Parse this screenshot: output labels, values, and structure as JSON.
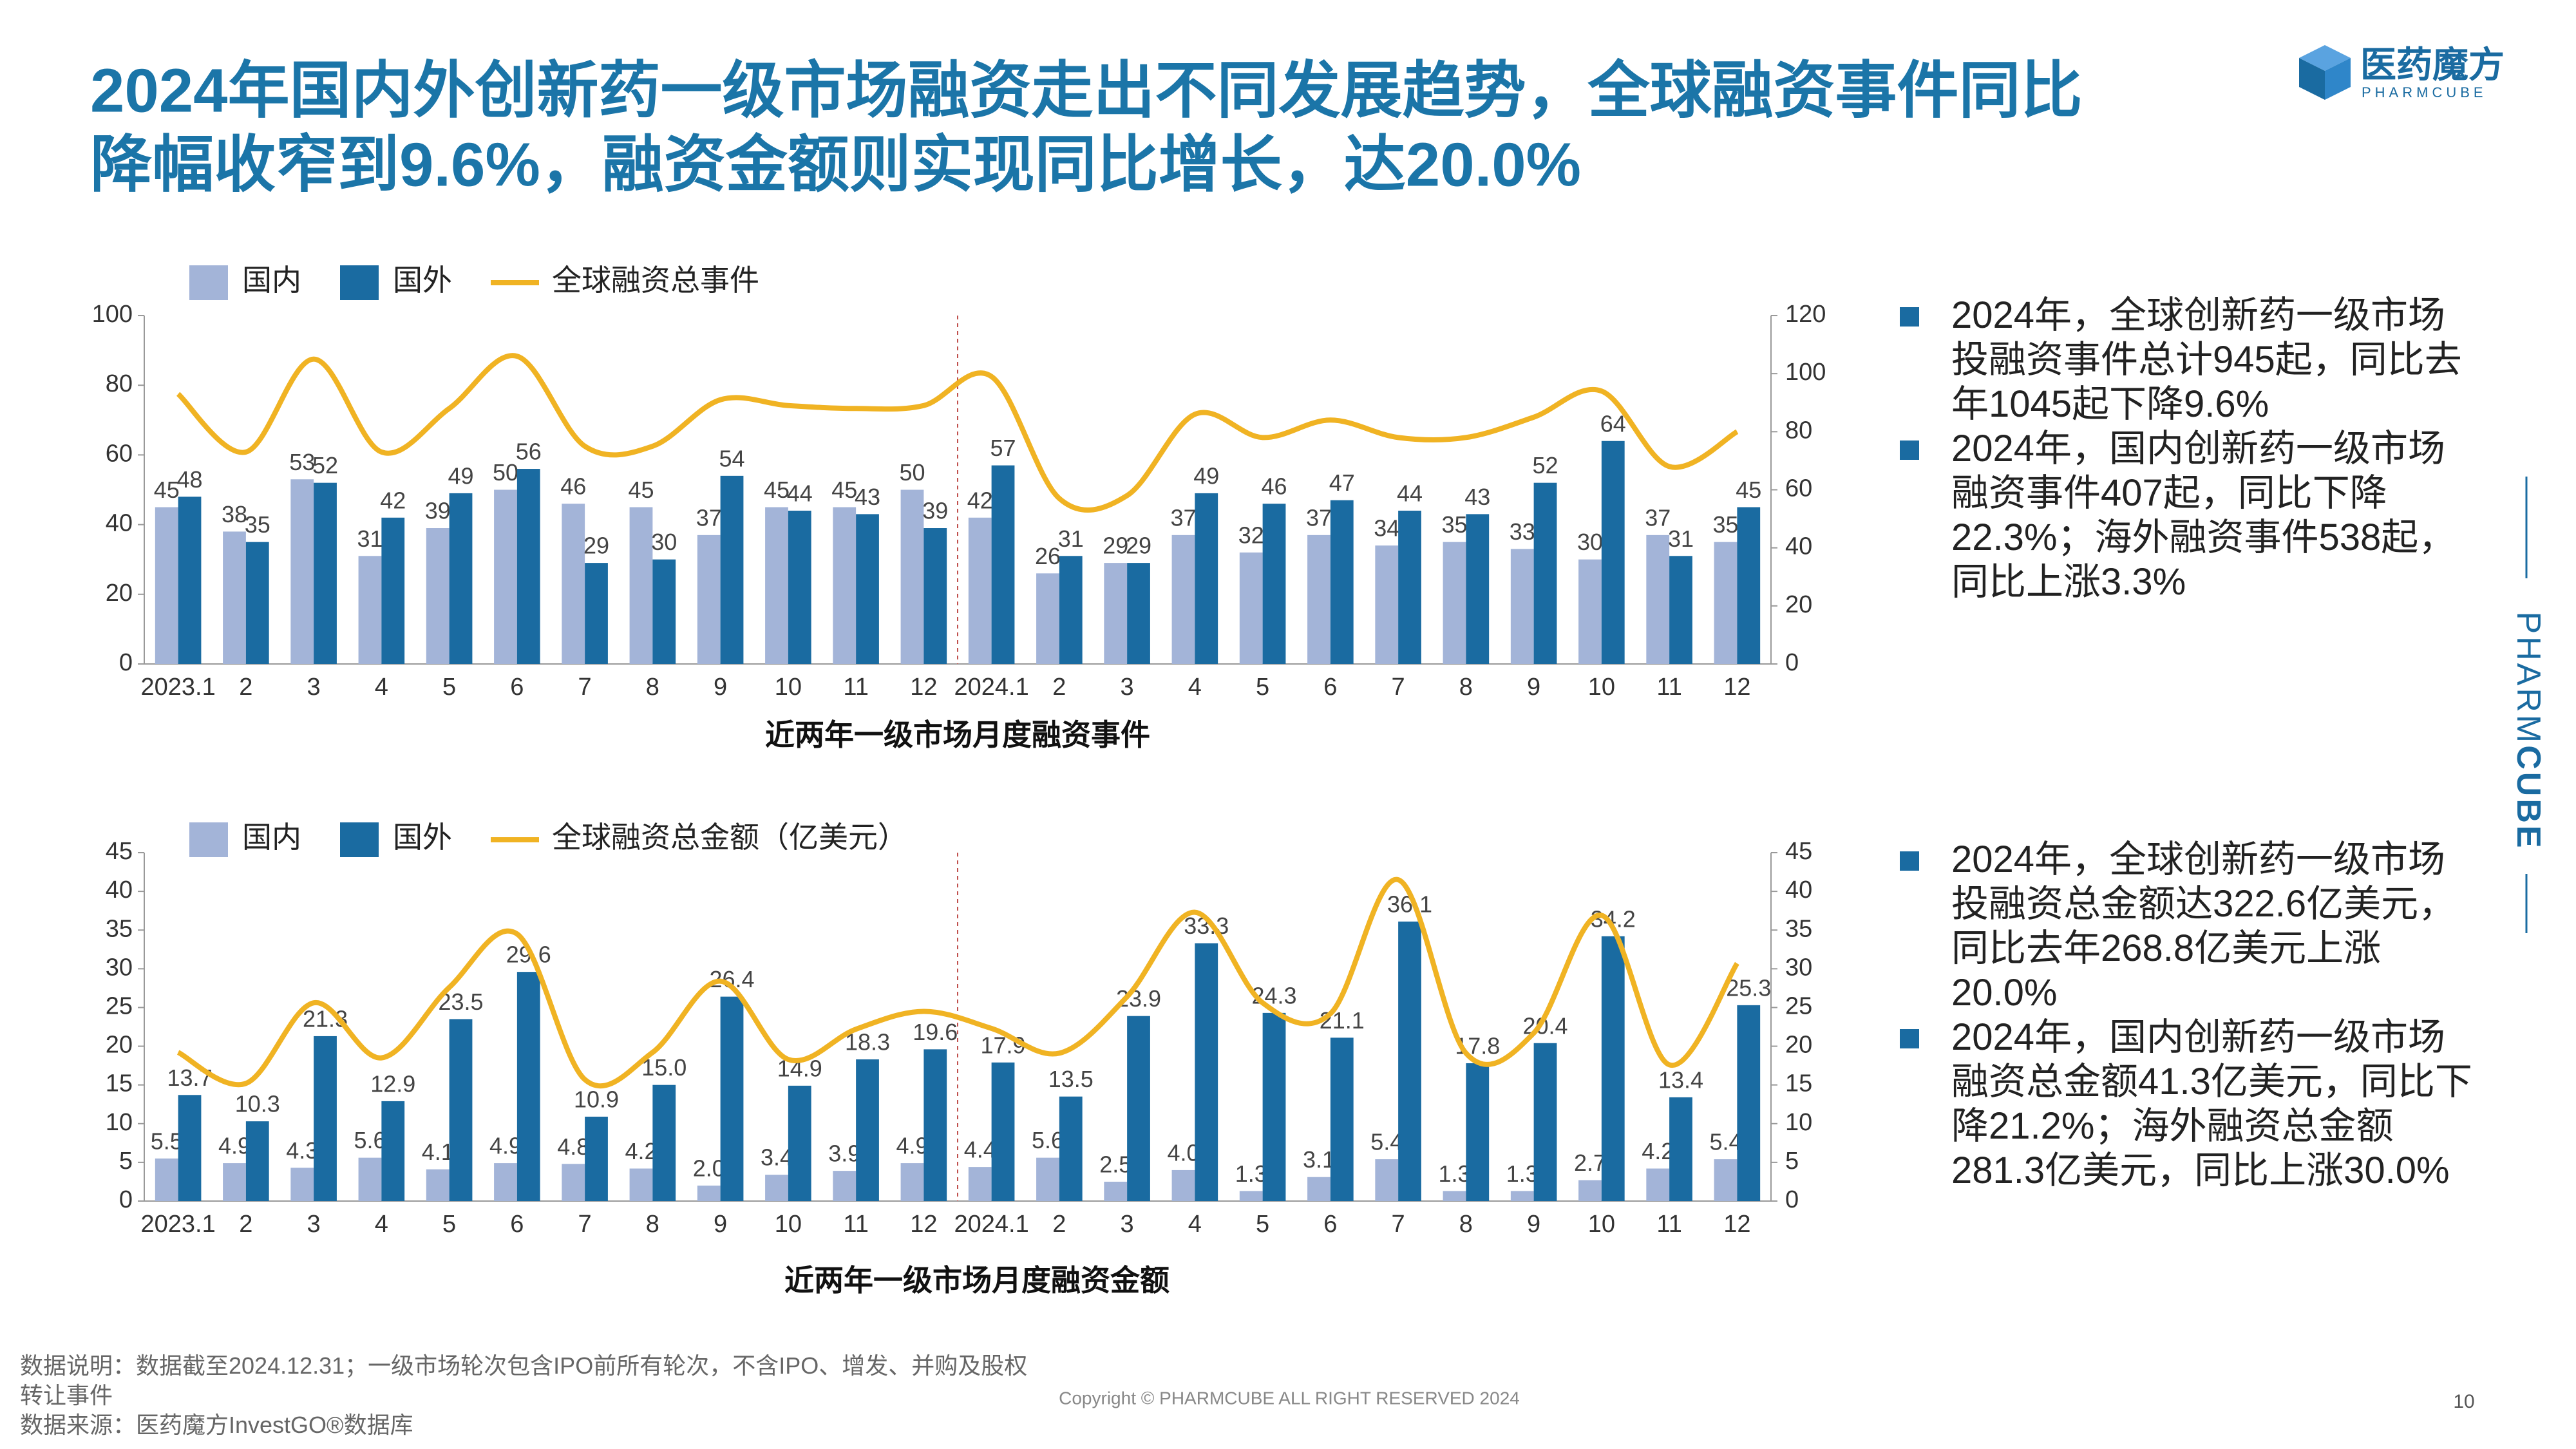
{
  "header": {
    "title": [
      "2024年国内外创新药一级市场融资走出不同发展趋势，全球融资事件同比",
      "降幅收窄到9.6%，融资金额则实现同比增长，达20.0%"
    ],
    "logo": "医药魔方",
    "logo_sub": "PHARMCUBE"
  },
  "side_label": [
    "PHARM",
    "CUBE"
  ],
  "bullets_top": [
    "2024年，全球创新药一级市场投融资事件总计945起，同比去年1045起下降9.6%",
    "2024年，国内创新药一级市场融资事件407起，同比下降22.3%；海外融资事件538起，同比上涨3.3%"
  ],
  "bullets_bottom": [
    "2024年，全球创新药一级市场投融资总金额达322.6亿美元，同比去年268.8亿美元上涨20.0%",
    "2024年，国内创新药一级市场融资总金额41.3亿美元，同比下降21.2%；海外融资总金额281.3亿美元，同比上涨30.0%"
  ],
  "footer": {
    "note": "数据说明：数据截至2024.12.31；一级市场轮次包含IPO前所有轮次，不含IPO、增发、并购及股权转让事件",
    "source": "数据来源：医药魔方InvestGO®数据库",
    "copyright": "Copyright © PHARMCUBE ALL RIGHT RESERVED 2024",
    "page": "10"
  },
  "chart_data": [
    {
      "type": "bar-line",
      "subtitle": "近两年一级市场月度融资事件",
      "legend": "top-left",
      "categories": [
        "2023.1",
        "2",
        "3",
        "4",
        "5",
        "6",
        "7",
        "8",
        "9",
        "10",
        "11",
        "12",
        "2024.1",
        "2",
        "3",
        "4",
        "5",
        "6",
        "7",
        "8",
        "9",
        "10",
        "11",
        "12"
      ],
      "series": [
        {
          "name": "国内",
          "color": "#a3b4d8",
          "values": [
            45,
            38,
            53,
            31,
            39,
            50,
            46,
            45,
            37,
            45,
            45,
            50,
            42,
            26,
            29,
            37,
            32,
            37,
            34,
            35,
            33,
            30,
            37,
            35
          ]
        },
        {
          "name": "国外",
          "color": "#1a6ba1",
          "values": [
            48,
            35,
            52,
            42,
            49,
            56,
            29,
            30,
            54,
            44,
            43,
            39,
            57,
            31,
            29,
            49,
            46,
            47,
            44,
            43,
            52,
            64,
            31,
            45
          ]
        },
        {
          "name": "全球融资总事件",
          "color": "#f0b323",
          "axis": "y2",
          "values": [
            93,
            73,
            105,
            73,
            88,
            106,
            75,
            75,
            91,
            89,
            88,
            89,
            99,
            57,
            58,
            86,
            78,
            84,
            78,
            78,
            85,
            94,
            68,
            80
          ]
        }
      ],
      "ylim": [
        0,
        100
      ],
      "yticks": [
        0,
        20,
        40,
        60,
        80,
        100
      ],
      "y2lim": [
        0,
        120
      ],
      "y2ticks": [
        0,
        20,
        40,
        60,
        80,
        100,
        120
      ]
    },
    {
      "type": "bar-line",
      "subtitle": "近两年一级市场月度融资金额",
      "legend": "top-left",
      "categories": [
        "2023.1",
        "2",
        "3",
        "4",
        "5",
        "6",
        "7",
        "8",
        "9",
        "10",
        "11",
        "12",
        "2024.1",
        "2",
        "3",
        "4",
        "5",
        "6",
        "7",
        "8",
        "9",
        "10",
        "11",
        "12"
      ],
      "series": [
        {
          "name": "国内",
          "color": "#a3b4d8",
          "values": [
            5.5,
            4.9,
            4.3,
            5.6,
            4.1,
            4.9,
            4.8,
            4.2,
            2,
            3.4,
            3.9,
            4.9,
            4.4,
            5.6,
            2.5,
            4,
            1.3,
            3.1,
            5.4,
            1.3,
            1.3,
            2.7,
            4.2,
            5.4
          ],
          "value_labels": [
            "5.5",
            "4.9",
            "4.3",
            "5.6",
            "4.1",
            "4.9",
            "4.8",
            "4.2",
            "2.0",
            "3.4",
            "3.9",
            "4.9",
            "4.4",
            "5.6",
            "2.5",
            "4.0",
            "1.3",
            "3.1",
            "5.4",
            "1.3",
            "1.3",
            "2.7",
            "4.2",
            "5.4"
          ]
        },
        {
          "name": "国外",
          "color": "#1a6ba1",
          "values": [
            13.7,
            10.3,
            21.3,
            12.9,
            23.5,
            29.6,
            10.9,
            15,
            26.4,
            14.9,
            18.3,
            19.6,
            17.9,
            13.5,
            23.9,
            33.3,
            24.3,
            21.1,
            36.1,
            17.8,
            20.4,
            34.2,
            13.4,
            25.3
          ],
          "value_labels": [
            "13.7",
            "10.3",
            "21.3",
            "12.9",
            "23.5",
            "29.6",
            "10.9",
            "15.0",
            "26.4",
            "14.9",
            "18.3",
            "19.6",
            "17.9",
            "13.5",
            "23.9",
            "33.3",
            "24.3",
            "21.1",
            "36.1",
            "17.8",
            "20.4",
            "34.2",
            "13.4",
            "25.3"
          ]
        },
        {
          "name": "全球融资总金额（亿美元）",
          "color": "#f0b323",
          "axis": "y2",
          "values": [
            19.2,
            15.2,
            25.6,
            18.5,
            27.6,
            34.5,
            15.7,
            19.2,
            28.4,
            18.3,
            22.2,
            24.5,
            22.3,
            19.1,
            26.4,
            37.3,
            25.6,
            24.2,
            41.5,
            19.1,
            21.7,
            36.9,
            17.6,
            30.7
          ]
        }
      ],
      "ylim": [
        0,
        45
      ],
      "yticks": [
        0,
        5,
        10,
        15,
        20,
        25,
        30,
        35,
        40,
        45
      ],
      "y2lim": [
        0,
        45
      ],
      "y2ticks": [
        0,
        5,
        10,
        15,
        20,
        25,
        30,
        35,
        40,
        45
      ]
    }
  ]
}
